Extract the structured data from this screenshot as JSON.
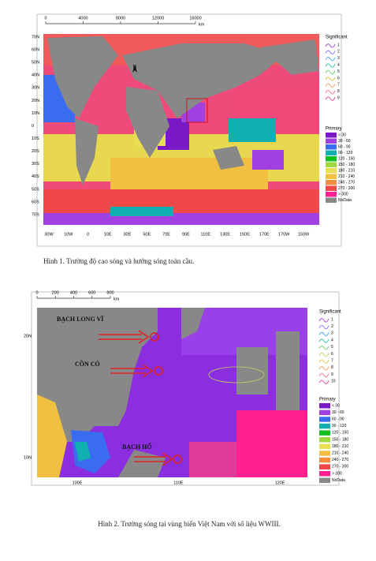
{
  "figures": [
    {
      "scale_bar": [
        "0",
        "4000",
        "8000",
        "12000",
        "16000"
      ],
      "scale_unit": "km",
      "lat_labels": [
        "70N",
        "60N",
        "50N",
        "40N",
        "30N",
        "20N",
        "10N",
        "0",
        "10S",
        "20S",
        "30S",
        "40S",
        "50S",
        "60S",
        "70S"
      ],
      "lon_labels": [
        "30W",
        "10W",
        "0",
        "10E",
        "30E",
        "50E",
        "70E",
        "90E",
        "110E",
        "130E",
        "150E",
        "170E",
        "170W",
        "150W"
      ],
      "significant_title": "Significant",
      "significant": [
        {
          "label": "1",
          "color": "#a040d0"
        },
        {
          "label": "2",
          "color": "#8070ff"
        },
        {
          "label": "3",
          "color": "#40a0ff"
        },
        {
          "label": "4",
          "color": "#20c0a0"
        },
        {
          "label": "5",
          "color": "#60d060"
        },
        {
          "label": "6",
          "color": "#e0c040"
        },
        {
          "label": "7",
          "color": "#f0a060"
        },
        {
          "label": "8",
          "color": "#f07080"
        },
        {
          "label": "9",
          "color": "#e040a0"
        }
      ],
      "primary_title": "Primary",
      "primary": [
        {
          "label": "< 30",
          "color": "#7a18c8"
        },
        {
          "label": "30 - 60",
          "color": "#a040e0"
        },
        {
          "label": "60 - 90",
          "color": "#3a6cf0"
        },
        {
          "label": "90 - 120",
          "color": "#10b0b0"
        },
        {
          "label": "120 - 150",
          "color": "#10c020"
        },
        {
          "label": "150 - 180",
          "color": "#a0d840"
        },
        {
          "label": "180 - 210",
          "color": "#e8e050"
        },
        {
          "label": "210 - 240",
          "color": "#f2c040"
        },
        {
          "label": "240 - 270",
          "color": "#f29040"
        },
        {
          "label": "270 - 300",
          "color": "#f04848"
        },
        {
          "label": "> 300",
          "color": "#ff2090"
        },
        {
          "label": "NoData",
          "color": "#888888"
        }
      ],
      "caption": "Hình 1. Trường độ cao sóng và hướng sóng toàn cầu."
    },
    {
      "scale_bar": [
        "0",
        "200",
        "400",
        "600",
        "800"
      ],
      "scale_unit": "km",
      "lat_labels": [
        "20N",
        "10N"
      ],
      "lon_labels": [
        "100E",
        "110E",
        "120E"
      ],
      "places": [
        "BẠCH LONG VĨ",
        "CỒN CỎ",
        "BẠCH HỔ"
      ],
      "significant_title": "Significant",
      "significant": [
        {
          "label": "1",
          "color": "#a040d0"
        },
        {
          "label": "2",
          "color": "#8070ff"
        },
        {
          "label": "3",
          "color": "#40a0ff"
        },
        {
          "label": "4",
          "color": "#20c0a0"
        },
        {
          "label": "5",
          "color": "#60d060"
        },
        {
          "label": "6",
          "color": "#c0d060"
        },
        {
          "label": "7",
          "color": "#e0c040"
        },
        {
          "label": "8",
          "color": "#f0a060"
        },
        {
          "label": "9",
          "color": "#f07080"
        },
        {
          "label": "10",
          "color": "#e040a0"
        }
      ],
      "primary_title": "Primary",
      "primary": [
        {
          "label": "< 30",
          "color": "#7a18c8"
        },
        {
          "label": "30 - 60",
          "color": "#a040e0"
        },
        {
          "label": "60 - 90",
          "color": "#3a6cf0"
        },
        {
          "label": "90 - 120",
          "color": "#10b0b0"
        },
        {
          "label": "120 - 150",
          "color": "#10c020"
        },
        {
          "label": "150 - 180",
          "color": "#a0d840"
        },
        {
          "label": "180 - 210",
          "color": "#e8e050"
        },
        {
          "label": "210 - 240",
          "color": "#f2c040"
        },
        {
          "label": "240 - 270",
          "color": "#f29040"
        },
        {
          "label": "270 - 300",
          "color": "#f04848"
        },
        {
          "label": "> 300",
          "color": "#ff2090"
        },
        {
          "label": "NoData",
          "color": "#888888"
        }
      ],
      "caption": "Hình 2. Trường sóng tại vùng biển Việt Nam với số liệu WWIII."
    }
  ]
}
